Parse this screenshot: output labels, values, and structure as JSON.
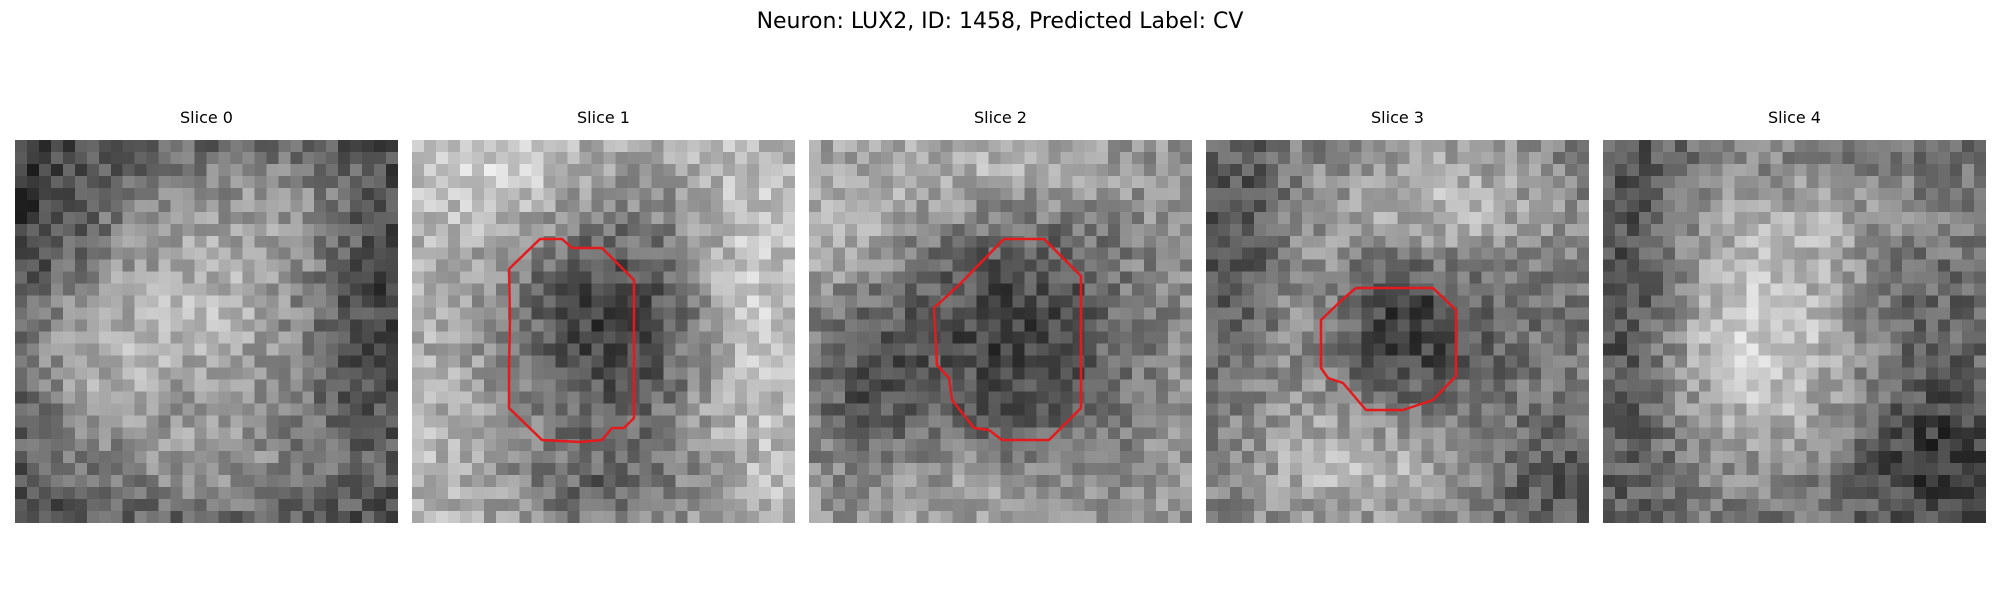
{
  "figure": {
    "title": "Neuron: LUX2, ID: 1458, Predicted Label: CV"
  },
  "colors": {
    "contour": "#e41a1c",
    "background": "#ffffff"
  },
  "panels": [
    {
      "title": "Slice 0",
      "has_contour": false
    },
    {
      "title": "Slice 1",
      "has_contour": true
    },
    {
      "title": "Slice 2",
      "has_contour": true
    },
    {
      "title": "Slice 3",
      "has_contour": true
    },
    {
      "title": "Slice 4",
      "has_contour": false
    }
  ]
}
